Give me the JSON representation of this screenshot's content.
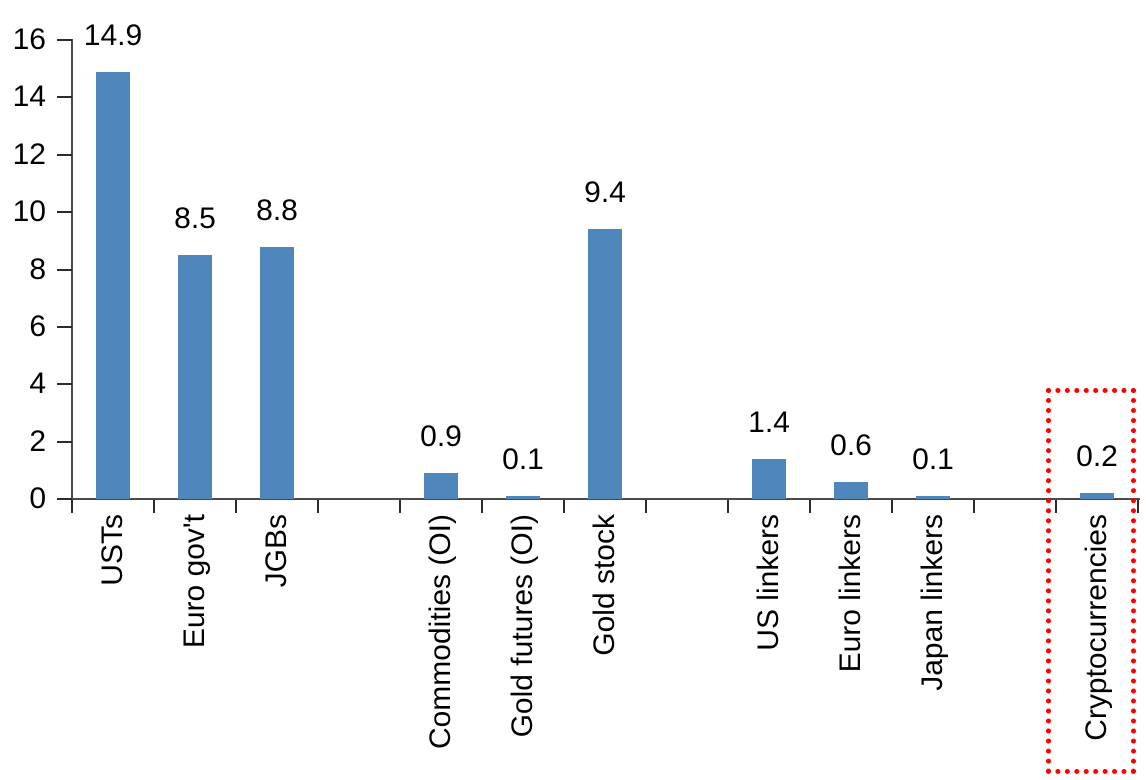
{
  "chart_data": {
    "type": "bar",
    "title": "",
    "xlabel": "",
    "ylabel": "",
    "categories": [
      "USTs",
      "Euro gov't",
      "JGBs",
      "",
      "Commodities (OI)",
      "Gold futures (OI)",
      "Gold stock",
      "",
      "US linkers",
      "Euro linkers",
      "Japan linkers",
      "",
      "Cryptocurrencies"
    ],
    "values": [
      14.9,
      8.5,
      8.8,
      null,
      0.9,
      0.1,
      9.4,
      null,
      1.4,
      0.6,
      0.1,
      null,
      0.2
    ],
    "data_labels": [
      "14.9",
      "8.5",
      "8.8",
      "",
      "0.9",
      "0.1",
      "9.4",
      "",
      "1.4",
      "0.6",
      "0.1",
      "",
      "0.2"
    ],
    "ylim": [
      0,
      16
    ],
    "ytick_interval": 2,
    "ytick_labels": [
      "0",
      "2",
      "4",
      "6",
      "8",
      "10",
      "12",
      "14",
      "16"
    ],
    "grid": false,
    "legend": "none",
    "bar_color": "#4f87bc",
    "axis_color": "#4a4a4a",
    "text_color": "#000000",
    "highlight": {
      "category": "Cryptocurrencies",
      "style": "red-dotted-box",
      "color": "#ff0000"
    }
  }
}
